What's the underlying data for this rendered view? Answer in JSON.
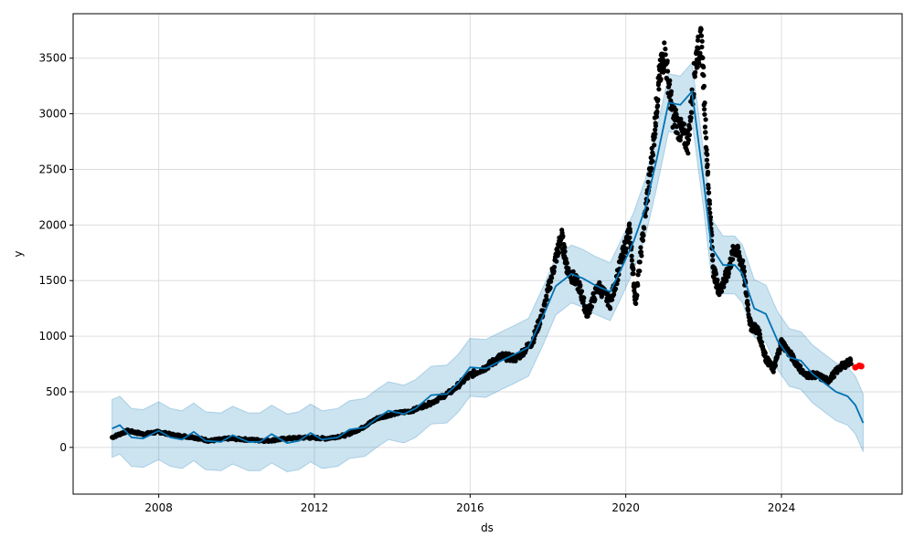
{
  "chart_data": {
    "type": "scatter",
    "title": "",
    "xlabel": "ds",
    "ylabel": "y",
    "xlim": [
      2005.8,
      2027.1
    ],
    "ylim": [
      -420,
      3900
    ],
    "x_ticks": [
      2008,
      2012,
      2016,
      2020,
      2024
    ],
    "x_tick_labels": [
      "2008",
      "2012",
      "2016",
      "2020",
      "2024"
    ],
    "y_ticks": [
      0,
      500,
      1000,
      1500,
      2000,
      2500,
      3000,
      3500
    ],
    "y_tick_labels": [
      "0",
      "500",
      "1000",
      "1500",
      "2000",
      "2500",
      "3000",
      "3500"
    ],
    "grid": true,
    "colors": {
      "observed": "#000000",
      "forecast": "#0072B2",
      "uncertainty": "#0072B2",
      "recent": "#ff0000"
    },
    "observed_path": [
      [
        2006.8,
        90
      ],
      [
        2007.2,
        150
      ],
      [
        2007.6,
        120
      ],
      [
        2008.0,
        140
      ],
      [
        2008.4,
        110
      ],
      [
        2008.9,
        90
      ],
      [
        2009.3,
        60
      ],
      [
        2009.8,
        80
      ],
      [
        2010.3,
        70
      ],
      [
        2010.8,
        60
      ],
      [
        2011.3,
        80
      ],
      [
        2011.8,
        90
      ],
      [
        2012.3,
        80
      ],
      [
        2012.8,
        110
      ],
      [
        2013.2,
        170
      ],
      [
        2013.6,
        260
      ],
      [
        2014.0,
        300
      ],
      [
        2014.5,
        330
      ],
      [
        2015.0,
        400
      ],
      [
        2015.5,
        500
      ],
      [
        2016.0,
        650
      ],
      [
        2016.4,
        720
      ],
      [
        2016.8,
        820
      ],
      [
        2017.2,
        800
      ],
      [
        2017.6,
        950
      ],
      [
        2017.9,
        1250
      ],
      [
        2018.2,
        1700
      ],
      [
        2018.35,
        1900
      ],
      [
        2018.5,
        1600
      ],
      [
        2018.8,
        1450
      ],
      [
        2019.0,
        1200
      ],
      [
        2019.3,
        1450
      ],
      [
        2019.6,
        1300
      ],
      [
        2019.9,
        1700
      ],
      [
        2020.1,
        1950
      ],
      [
        2020.25,
        1300
      ],
      [
        2020.5,
        2100
      ],
      [
        2020.7,
        2700
      ],
      [
        2020.85,
        3300
      ],
      [
        2021.0,
        3550
      ],
      [
        2021.2,
        3000
      ],
      [
        2021.4,
        2850
      ],
      [
        2021.6,
        2750
      ],
      [
        2021.8,
        3500
      ],
      [
        2021.95,
        3650
      ],
      [
        2022.1,
        2500
      ],
      [
        2022.25,
        1600
      ],
      [
        2022.4,
        1400
      ],
      [
        2022.6,
        1550
      ],
      [
        2022.8,
        1800
      ],
      [
        2023.0,
        1650
      ],
      [
        2023.2,
        1100
      ],
      [
        2023.4,
        1050
      ],
      [
        2023.6,
        800
      ],
      [
        2023.8,
        700
      ],
      [
        2024.0,
        950
      ],
      [
        2024.3,
        800
      ],
      [
        2024.6,
        650
      ],
      [
        2024.9,
        650
      ],
      [
        2025.2,
        600
      ],
      [
        2025.5,
        720
      ],
      [
        2025.8,
        780
      ]
    ],
    "forecast": [
      [
        2006.8,
        170
      ],
      [
        2007.0,
        200
      ],
      [
        2007.3,
        90
      ],
      [
        2007.6,
        80
      ],
      [
        2008.0,
        150
      ],
      [
        2008.3,
        90
      ],
      [
        2008.6,
        70
      ],
      [
        2008.9,
        140
      ],
      [
        2009.2,
        60
      ],
      [
        2009.6,
        50
      ],
      [
        2009.9,
        110
      ],
      [
        2010.3,
        50
      ],
      [
        2010.6,
        50
      ],
      [
        2010.9,
        120
      ],
      [
        2011.3,
        40
      ],
      [
        2011.6,
        60
      ],
      [
        2011.9,
        130
      ],
      [
        2012.2,
        70
      ],
      [
        2012.6,
        90
      ],
      [
        2012.9,
        160
      ],
      [
        2013.3,
        180
      ],
      [
        2013.6,
        260
      ],
      [
        2013.9,
        330
      ],
      [
        2014.3,
        300
      ],
      [
        2014.6,
        350
      ],
      [
        2015.0,
        470
      ],
      [
        2015.4,
        480
      ],
      [
        2015.7,
        580
      ],
      [
        2016.0,
        720
      ],
      [
        2016.4,
        710
      ],
      [
        2016.8,
        780
      ],
      [
        2017.1,
        830
      ],
      [
        2017.5,
        900
      ],
      [
        2017.9,
        1200
      ],
      [
        2018.2,
        1450
      ],
      [
        2018.6,
        1560
      ],
      [
        2018.9,
        1520
      ],
      [
        2019.2,
        1460
      ],
      [
        2019.6,
        1400
      ],
      [
        2019.9,
        1620
      ],
      [
        2020.2,
        1850
      ],
      [
        2020.5,
        2150
      ],
      [
        2020.8,
        2600
      ],
      [
        2021.1,
        3100
      ],
      [
        2021.4,
        3080
      ],
      [
        2021.7,
        3200
      ],
      [
        2022.0,
        2400
      ],
      [
        2022.2,
        1800
      ],
      [
        2022.5,
        1640
      ],
      [
        2022.8,
        1640
      ],
      [
        2023.0,
        1560
      ],
      [
        2023.3,
        1250
      ],
      [
        2023.6,
        1200
      ],
      [
        2023.9,
        960
      ],
      [
        2024.2,
        810
      ],
      [
        2024.5,
        780
      ],
      [
        2024.8,
        660
      ],
      [
        2025.1,
        580
      ],
      [
        2025.4,
        500
      ],
      [
        2025.7,
        460
      ],
      [
        2025.9,
        380
      ],
      [
        2026.1,
        220
      ]
    ],
    "uncertainty_halfwidth": 260,
    "recent_points": [
      [
        2025.9,
        720
      ],
      [
        2026.0,
        735
      ],
      [
        2026.05,
        730
      ]
    ]
  }
}
